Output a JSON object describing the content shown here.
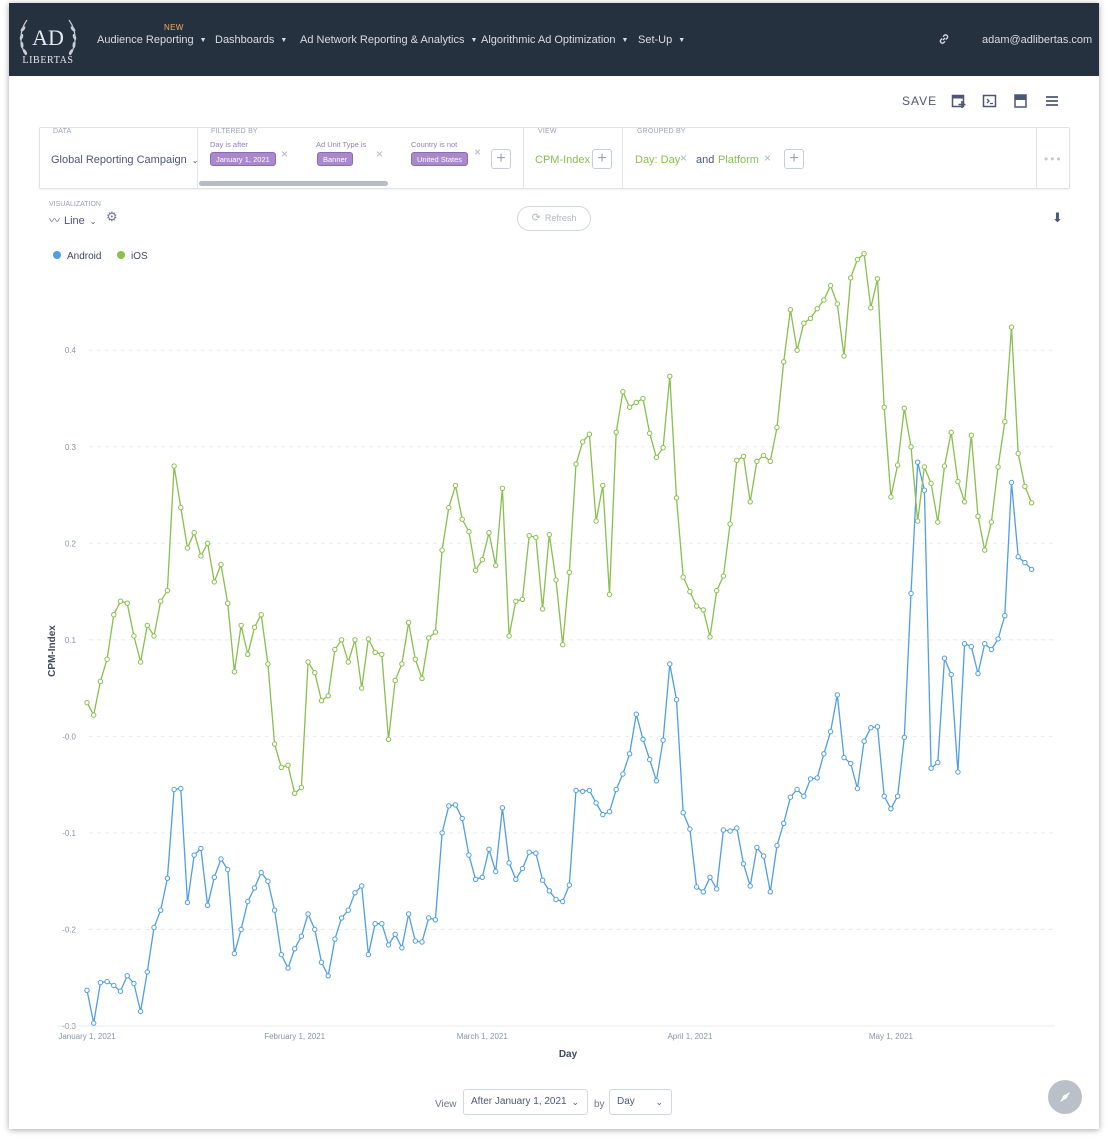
{
  "nav": {
    "items": [
      {
        "label": "Audience Reporting",
        "badge": "NEW"
      },
      {
        "label": "Dashboards"
      },
      {
        "label": "Ad Network Reporting & Analytics"
      },
      {
        "label": "Algorithmic Ad Optimization"
      },
      {
        "label": "Set-Up"
      }
    ],
    "user": "adam@adlibertas.com",
    "logo_text_top": "AD",
    "logo_text_bottom": "LIBERTAS"
  },
  "toolbar": {
    "save_label": "SAVE",
    "icons": [
      "add-to-dashboard-icon",
      "embed-icon",
      "notebook-icon",
      "menu-icon"
    ]
  },
  "query": {
    "data_caption": "DATA",
    "data_value": "Global Reporting Campaign",
    "filtered_caption": "FILTERED BY",
    "filters": [
      {
        "caption": "Day is after",
        "value": "January 1, 2021"
      },
      {
        "caption": "Ad Unit Type is",
        "value": "Banner"
      },
      {
        "caption": "Country is not",
        "value": "United States"
      }
    ],
    "view_caption": "VIEW",
    "view_value": "CPM-Index",
    "grouped_caption": "GROUPED BY",
    "group1": "Day: Day",
    "group_joiner": "and",
    "group2": "Platform"
  },
  "visualization": {
    "caption": "VISUALIZATION",
    "type": "Line",
    "refresh_label": "Refresh"
  },
  "chart_data": {
    "type": "line",
    "xlabel": "Day",
    "ylabel": "CPM-Index",
    "x_start": "January 1, 2021",
    "x_end": "May 24, 2021",
    "x_ticks": [
      "January 1, 2021",
      "February 1, 2021",
      "March 1, 2021",
      "April 1, 2021",
      "May 1, 2021"
    ],
    "y_ticks": [
      "-0.3",
      "-0.2",
      "-0.1",
      "-0.0",
      "0.1",
      "0.2",
      "0.3",
      "0.4"
    ],
    "ylim": [
      -0.3,
      0.48
    ],
    "grid": "horizontal dashed",
    "legend_position": "top-left",
    "series": [
      {
        "name": "Android",
        "color": "#509ee3",
        "values": [
          -0.263,
          -0.297,
          -0.255,
          -0.254,
          -0.258,
          -0.264,
          -0.248,
          -0.256,
          -0.285,
          -0.244,
          -0.198,
          -0.18,
          -0.147,
          -0.055,
          -0.054,
          -0.172,
          -0.123,
          -0.116,
          -0.175,
          -0.146,
          -0.127,
          -0.138,
          -0.225,
          -0.2,
          -0.171,
          -0.157,
          -0.141,
          -0.15,
          -0.18,
          -0.226,
          -0.24,
          -0.22,
          -0.207,
          -0.184,
          -0.2,
          -0.234,
          -0.248,
          -0.21,
          -0.188,
          -0.18,
          -0.162,
          -0.155,
          -0.226,
          -0.194,
          -0.194,
          -0.216,
          -0.205,
          -0.219,
          -0.184,
          -0.212,
          -0.213,
          -0.188,
          -0.19,
          -0.1,
          -0.072,
          -0.071,
          -0.085,
          -0.123,
          -0.148,
          -0.146,
          -0.117,
          -0.14,
          -0.074,
          -0.131,
          -0.148,
          -0.137,
          -0.12,
          -0.121,
          -0.149,
          -0.16,
          -0.169,
          -0.171,
          -0.154,
          -0.056,
          -0.057,
          -0.056,
          -0.069,
          -0.081,
          -0.078,
          -0.055,
          -0.039,
          -0.018,
          0.023,
          -0.003,
          -0.024,
          -0.046,
          -0.004,
          0.075,
          0.038,
          -0.079,
          -0.096,
          -0.156,
          -0.161,
          -0.146,
          -0.158,
          -0.097,
          -0.098,
          -0.095,
          -0.132,
          -0.155,
          -0.115,
          -0.124,
          -0.161,
          -0.113,
          -0.09,
          -0.063,
          -0.055,
          -0.062,
          -0.044,
          -0.043,
          -0.018,
          0.005,
          0.043,
          -0.022,
          -0.028,
          -0.054,
          -0.005,
          0.009,
          0.01,
          -0.062,
          -0.075,
          -0.062,
          -0.001,
          0.148,
          0.284,
          0.255,
          -0.033,
          -0.027,
          0.081,
          0.064,
          -0.037,
          0.096,
          0.093,
          0.065,
          0.096,
          0.09,
          0.101,
          0.125,
          0.263,
          0.186,
          0.18,
          0.173
        ]
      },
      {
        "name": "iOS",
        "color": "#88bf4d",
        "values": [
          0.035,
          0.022,
          0.057,
          0.08,
          0.126,
          0.14,
          0.138,
          0.104,
          0.077,
          0.115,
          0.104,
          0.14,
          0.151,
          0.28,
          0.237,
          0.195,
          0.211,
          0.187,
          0.2,
          0.16,
          0.178,
          0.138,
          0.067,
          0.115,
          0.085,
          0.113,
          0.126,
          0.075,
          -0.008,
          -0.032,
          -0.03,
          -0.059,
          -0.053,
          0.077,
          0.066,
          0.037,
          0.042,
          0.09,
          0.1,
          0.077,
          0.1,
          0.05,
          0.101,
          0.087,
          0.085,
          -0.003,
          0.058,
          0.075,
          0.118,
          0.08,
          0.06,
          0.102,
          0.108,
          0.193,
          0.237,
          0.26,
          0.225,
          0.212,
          0.172,
          0.183,
          0.211,
          0.177,
          0.257,
          0.104,
          0.14,
          0.142,
          0.208,
          0.206,
          0.132,
          0.209,
          0.162,
          0.095,
          0.17,
          0.282,
          0.305,
          0.313,
          0.223,
          0.26,
          0.147,
          0.315,
          0.357,
          0.341,
          0.346,
          0.35,
          0.314,
          0.289,
          0.299,
          0.373,
          0.247,
          0.165,
          0.15,
          0.135,
          0.131,
          0.103,
          0.151,
          0.166,
          0.22,
          0.286,
          0.29,
          0.243,
          0.285,
          0.291,
          0.285,
          0.32,
          0.388,
          0.442,
          0.4,
          0.428,
          0.433,
          0.443,
          0.452,
          0.467,
          0.448,
          0.394,
          0.475,
          0.494,
          0.5,
          0.444,
          0.474,
          0.341,
          0.248,
          0.281,
          0.34,
          0.3,
          0.223,
          0.279,
          0.262,
          0.222,
          0.28,
          0.315,
          0.264,
          0.243,
          0.312,
          0.228,
          0.193,
          0.222,
          0.279,
          0.326,
          0.424,
          0.293,
          0.259,
          0.242
        ]
      }
    ]
  },
  "footer": {
    "view_label": "View",
    "range_value": "After January 1, 2021",
    "by_label": "by",
    "unit_value": "Day"
  }
}
